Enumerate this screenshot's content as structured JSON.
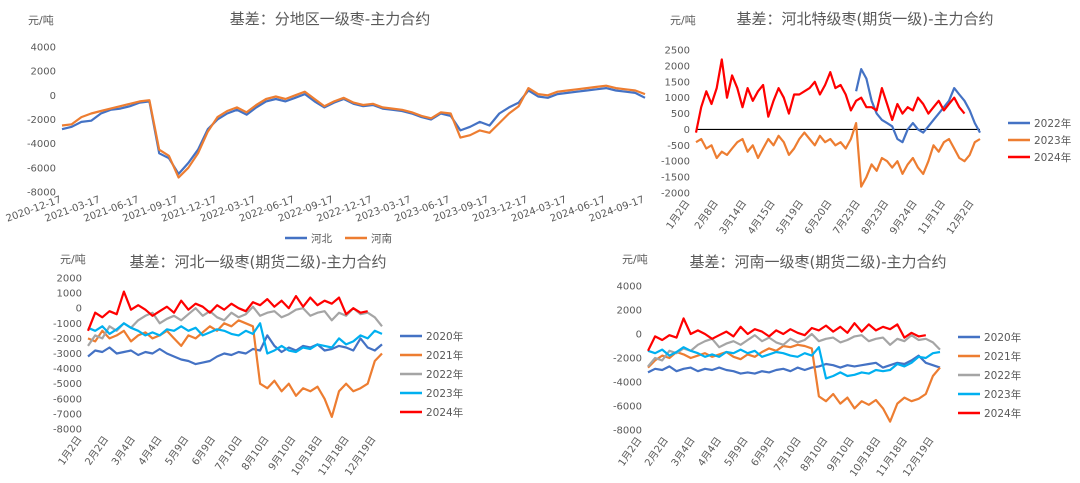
{
  "chart_data": [
    {
      "type": "line",
      "title": "基差：分地区一级枣-主力合约",
      "unit": "元/吨",
      "ylim": [
        -8000,
        4000
      ],
      "yticks": [
        "4000",
        "2000",
        "0",
        "-2000",
        "-4000",
        "-6000",
        "-8000"
      ],
      "xticks": [
        "2020-12-17",
        "2021-03-17",
        "2021-06-17",
        "2021-09-17",
        "2021-12-17",
        "2022-03-17",
        "2022-06-17",
        "2022-09-17",
        "2022-12-17",
        "2023-03-17",
        "2023-06-17",
        "2023-09-17",
        "2023-12-17",
        "2024-03-17",
        "2024-06-17",
        "2024-09-17"
      ],
      "legend_position": "bottom",
      "series": [
        {
          "name": "河北",
          "color": "#4472C4",
          "values": [
            -2800,
            -2600,
            -2200,
            -2100,
            -1500,
            -1200,
            -1100,
            -900,
            -600,
            -500,
            -4800,
            -5200,
            -6500,
            -5600,
            -4500,
            -2800,
            -2000,
            -1500,
            -1200,
            -1600,
            -1000,
            -500,
            -300,
            -500,
            -200,
            100,
            -500,
            -1000,
            -600,
            -300,
            -700,
            -900,
            -800,
            -1100,
            -1200,
            -1300,
            -1500,
            -1800,
            -2000,
            -1500,
            -1700,
            -2900,
            -2600,
            -2200,
            -2500,
            -1500,
            -1000,
            -600,
            400,
            -100,
            -200,
            100,
            200,
            300,
            400,
            500,
            600,
            400,
            300,
            200,
            -200
          ]
        },
        {
          "name": "河南",
          "color": "#ED7D31",
          "values": [
            -2500,
            -2400,
            -1800,
            -1500,
            -1300,
            -1100,
            -900,
            -700,
            -500,
            -400,
            -4500,
            -5000,
            -6800,
            -6000,
            -4800,
            -3000,
            -1800,
            -1300,
            -1000,
            -1400,
            -800,
            -300,
            -100,
            -300,
            0,
            300,
            -300,
            -900,
            -500,
            -200,
            -600,
            -800,
            -700,
            -1000,
            -1100,
            -1200,
            -1400,
            -1700,
            -1900,
            -1400,
            -1500,
            -3500,
            -3300,
            -2900,
            -3100,
            -2300,
            -1500,
            -900,
            600,
            100,
            0,
            300,
            400,
            500,
            600,
            700,
            800,
            600,
            500,
            400,
            100
          ]
        }
      ]
    },
    {
      "type": "line",
      "title": "基差：河北特级枣(期货一级)-主力合约",
      "unit": "元/吨",
      "ylim": [
        -2000,
        2500
      ],
      "yticks": [
        "2500",
        "2000",
        "1500",
        "1000",
        "500",
        "0",
        "-500",
        "-1000",
        "-1500",
        "-2000"
      ],
      "xticks": [
        "1月2日",
        "2月8日",
        "3月14日",
        "4月15日",
        "5月19日",
        "6月20日",
        "7月23日",
        "8月23日",
        "9月24日",
        "11月1日",
        "12月2日"
      ],
      "legend_position": "right",
      "series": [
        {
          "name": "2022年",
          "color": "#4472C4",
          "values": [
            null,
            null,
            null,
            null,
            null,
            null,
            null,
            null,
            null,
            null,
            null,
            null,
            null,
            null,
            null,
            null,
            null,
            null,
            null,
            null,
            null,
            null,
            null,
            null,
            null,
            null,
            null,
            null,
            null,
            null,
            null,
            1200,
            1900,
            1600,
            900,
            500,
            300,
            200,
            100,
            -300,
            -400,
            0,
            200,
            0,
            -100,
            100,
            300,
            500,
            700,
            900,
            1300,
            1100,
            900,
            600,
            200,
            -100
          ]
        },
        {
          "name": "2023年",
          "color": "#ED7D31",
          "values": [
            -400,
            -300,
            -600,
            -500,
            -900,
            -700,
            -800,
            -600,
            -400,
            -300,
            -700,
            -500,
            -900,
            -600,
            -300,
            -500,
            -200,
            -400,
            -800,
            -600,
            -300,
            -100,
            -300,
            -500,
            -200,
            -400,
            -300,
            -500,
            -400,
            -600,
            -300,
            200,
            -1800,
            -1500,
            -1100,
            -1300,
            -900,
            -1000,
            -1200,
            -1000,
            -1400,
            -1100,
            -900,
            -1200,
            -1400,
            -1000,
            -500,
            -700,
            -400,
            -300,
            -600,
            -900,
            -1000,
            -800,
            -400,
            -300
          ]
        },
        {
          "name": "2024年",
          "color": "#FF0000",
          "values": [
            -100,
            700,
            1200,
            800,
            1300,
            2200,
            1000,
            1700,
            1300,
            700,
            1300,
            900,
            1200,
            1400,
            400,
            900,
            1300,
            1000,
            500,
            1100,
            1100,
            1200,
            1300,
            1500,
            1100,
            1400,
            1800,
            1300,
            1400,
            1100,
            600,
            900,
            1000,
            700,
            700,
            600,
            1300,
            800,
            300,
            800,
            500,
            700,
            600,
            1000,
            800,
            500,
            700,
            900,
            600,
            800,
            1000,
            700,
            500,
            null,
            null,
            null
          ]
        }
      ]
    },
    {
      "type": "line",
      "title": "基差：河北一级枣(期货二级)-主力合约",
      "unit": "元/吨",
      "ylim": [
        -8000,
        2000
      ],
      "yticks": [
        "2000",
        "1000",
        "0",
        "-1000",
        "-2000",
        "-3000",
        "-4000",
        "-5000",
        "-6000",
        "-7000",
        "-8000"
      ],
      "xticks": [
        "1月2日",
        "2月2日",
        "3月4日",
        "4月4日",
        "5月9日",
        "6月9日",
        "7月10日",
        "8月10日",
        "9月10日",
        "10月18日",
        "11月18日",
        "12月19日"
      ],
      "legend_position": "right",
      "series": [
        {
          "name": "2020年",
          "color": "#4472C4",
          "values": [
            -3200,
            -2800,
            -2900,
            -2600,
            -3000,
            -2900,
            -2800,
            -3100,
            -2900,
            -3000,
            -2700,
            -3000,
            -3200,
            -3400,
            -3500,
            -3700,
            -3600,
            -3500,
            -3200,
            -3000,
            -3100,
            -2900,
            -3000,
            -2700,
            -2800,
            -1800,
            -2500,
            -2900,
            -2600,
            -2800,
            -2500,
            -2600,
            -2400,
            -2800,
            -2700,
            -2500,
            -2600,
            -2800,
            -2000,
            -2600,
            -2800,
            -2400
          ]
        },
        {
          "name": "2021年",
          "color": "#ED7D31",
          "values": [
            -2000,
            -2200,
            -1500,
            -2000,
            -1800,
            -1500,
            -2200,
            -1800,
            -1600,
            -2000,
            -1800,
            -1500,
            -2000,
            -2500,
            -1800,
            -2000,
            -1600,
            -1200,
            -1500,
            -1000,
            -1200,
            -800,
            -1000,
            -1200,
            -5000,
            -5300,
            -4800,
            -5500,
            -5000,
            -5800,
            -5300,
            -5500,
            -5200,
            -6000,
            -7200,
            -5500,
            -5000,
            -5500,
            -5300,
            -5000,
            -3500,
            -3000
          ]
        },
        {
          "name": "2022年",
          "color": "#A5A5A5",
          "values": [
            -2500,
            -1800,
            -2000,
            -1200,
            -1500,
            -1000,
            -1300,
            -800,
            -500,
            -300,
            -1000,
            -700,
            -500,
            -800,
            -400,
            0,
            -500,
            -200,
            -600,
            -800,
            -300,
            -600,
            -400,
            100,
            -500,
            -300,
            -200,
            -600,
            -400,
            -100,
            0,
            -500,
            -300,
            -200,
            -800,
            -300,
            -500,
            0,
            -400,
            -300,
            -600,
            -1200
          ]
        },
        {
          "name": "2023年",
          "color": "#00B0F0",
          "values": [
            -1300,
            -1500,
            -1200,
            -1700,
            -1400,
            -1000,
            -1300,
            -1500,
            -1800,
            -1600,
            -1800,
            -1400,
            -1500,
            -1200,
            -1500,
            -1300,
            -1800,
            -1600,
            -1400,
            -1500,
            -1700,
            -1800,
            -1500,
            -1700,
            -1000,
            -3000,
            -2800,
            -2500,
            -2800,
            -2900,
            -2600,
            -2700,
            -2400,
            -2500,
            -2600,
            -2000,
            -2400,
            -2200,
            -1800,
            -2000,
            -1500,
            -1700
          ]
        },
        {
          "name": "2024年",
          "color": "#FF0000",
          "values": [
            -1500,
            -300,
            -600,
            -200,
            -400,
            1100,
            -100,
            200,
            -100,
            -500,
            -200,
            100,
            -300,
            500,
            -100,
            300,
            100,
            -300,
            200,
            -100,
            300,
            0,
            -200,
            400,
            200,
            600,
            100,
            500,
            0,
            800,
            100,
            700,
            200,
            500,
            300,
            700,
            -400,
            0,
            -300,
            -200,
            null,
            null
          ]
        }
      ]
    },
    {
      "type": "line",
      "title": "基差：河南一级枣(期货二级)-主力合约",
      "unit": "元/吨",
      "ylim": [
        -8000,
        4000
      ],
      "yticks": [
        "4000",
        "2000",
        "0",
        "-2000",
        "-4000",
        "-6000",
        "-8000"
      ],
      "xticks": [
        "1月2日",
        "2月2日",
        "3月4日",
        "4月4日",
        "5月9日",
        "6月9日",
        "7月10日",
        "8月10日",
        "9月10日",
        "10月18日",
        "11月18日",
        "12月19日"
      ],
      "legend_position": "right",
      "series": [
        {
          "name": "2020年",
          "color": "#4472C4",
          "values": [
            -3200,
            -2900,
            -3000,
            -2700,
            -3100,
            -2900,
            -2800,
            -3100,
            -2900,
            -3000,
            -2800,
            -3000,
            -3100,
            -3300,
            -3200,
            -3300,
            -3100,
            -3200,
            -3000,
            -2900,
            -3100,
            -2800,
            -3000,
            -2800,
            -2700,
            -2500,
            -2600,
            -2800,
            -2600,
            -2700,
            -2600,
            -2500,
            -2400,
            -2800,
            -2600,
            -2400,
            -2500,
            -2200,
            -1800,
            -2400,
            -2600,
            -2800
          ]
        },
        {
          "name": "2021年",
          "color": "#ED7D31",
          "values": [
            -2800,
            -2200,
            -1800,
            -2000,
            -1500,
            -1700,
            -2000,
            -1800,
            -1600,
            -1900,
            -1700,
            -1500,
            -1900,
            -2100,
            -1700,
            -1900,
            -1500,
            -1200,
            -1400,
            -1000,
            -1100,
            -900,
            -1000,
            -1200,
            -5200,
            -5600,
            -5000,
            -5800,
            -5300,
            -6200,
            -5600,
            -5900,
            -5500,
            -6200,
            -7300,
            -5800,
            -5300,
            -5600,
            -5400,
            -5000,
            -3500,
            -2800
          ]
        },
        {
          "name": "2022年",
          "color": "#A5A5A5",
          "values": [
            -2700,
            -2000,
            -2200,
            -1400,
            -1600,
            -1200,
            -1400,
            -900,
            -600,
            -400,
            -1100,
            -800,
            -600,
            -900,
            -500,
            -100,
            -600,
            -300,
            -700,
            -900,
            -400,
            -700,
            -500,
            0,
            -600,
            -400,
            -300,
            -700,
            -500,
            -200,
            -100,
            -600,
            -400,
            -300,
            -900,
            -400,
            -600,
            -100,
            -500,
            -400,
            -700,
            -1300
          ]
        },
        {
          "name": "2023年",
          "color": "#00B0F0",
          "values": [
            -1400,
            -1600,
            -1300,
            -1800,
            -1500,
            -1100,
            -1400,
            -1600,
            -1900,
            -1700,
            -1900,
            -1500,
            -1600,
            -1300,
            -1600,
            -1400,
            -1900,
            -1700,
            -1500,
            -1600,
            -1800,
            -1900,
            -1600,
            -1800,
            -1100,
            -3700,
            -3500,
            -3200,
            -3500,
            -3400,
            -3200,
            -3300,
            -3000,
            -3100,
            -3000,
            -2500,
            -2700,
            -2400,
            -1900,
            -2000,
            -1600,
            -1500
          ]
        },
        {
          "name": "2024年",
          "color": "#FF0000",
          "values": [
            -1400,
            -200,
            -500,
            -100,
            -300,
            1300,
            0,
            300,
            0,
            -400,
            -100,
            200,
            -200,
            600,
            0,
            400,
            200,
            -200,
            300,
            0,
            400,
            100,
            -100,
            500,
            300,
            700,
            200,
            600,
            100,
            900,
            200,
            800,
            300,
            600,
            400,
            800,
            -300,
            100,
            -200,
            -100,
            null,
            null
          ]
        }
      ]
    }
  ]
}
